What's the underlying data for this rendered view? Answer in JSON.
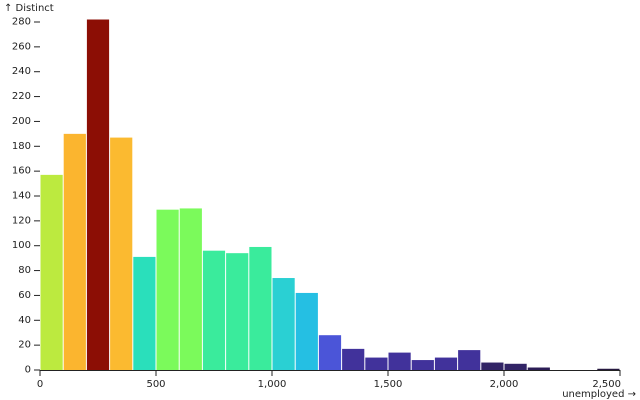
{
  "chart_data": {
    "type": "bar",
    "xlabel": "unemployed →",
    "ylabel": "↑ Distinct",
    "xlim": [
      0,
      2500
    ],
    "ylim": [
      0,
      280
    ],
    "x_ticks": [
      0,
      500,
      1000,
      1500,
      2000,
      2500
    ],
    "x_tick_labels": [
      "0",
      "500",
      "1,000",
      "1,500",
      "2,000",
      "2,500"
    ],
    "y_ticks": [
      0,
      20,
      40,
      60,
      80,
      100,
      120,
      140,
      160,
      180,
      200,
      220,
      240,
      260,
      280
    ],
    "y_tick_labels": [
      "0",
      "20",
      "40",
      "60",
      "80",
      "100",
      "120",
      "140",
      "160",
      "180",
      "200",
      "220",
      "240",
      "260",
      "280"
    ],
    "grid": false,
    "legend": "none",
    "bins": [
      {
        "x0": 0,
        "x1": 100,
        "value": 157,
        "color": "#bcea3f"
      },
      {
        "x0": 100,
        "x1": 200,
        "value": 190,
        "color": "#fbb52f"
      },
      {
        "x0": 200,
        "x1": 300,
        "value": 282,
        "color": "#8c0e05"
      },
      {
        "x0": 300,
        "x1": 400,
        "value": 187,
        "color": "#fbba30"
      },
      {
        "x0": 400,
        "x1": 500,
        "value": 91,
        "color": "#2adfbb"
      },
      {
        "x0": 500,
        "x1": 600,
        "value": 129,
        "color": "#7bfa5b"
      },
      {
        "x0": 600,
        "x1": 700,
        "value": 130,
        "color": "#7bfa5b"
      },
      {
        "x0": 700,
        "x1": 800,
        "value": 96,
        "color": "#3aeb9c"
      },
      {
        "x0": 800,
        "x1": 900,
        "value": 94,
        "color": "#3aeb9c"
      },
      {
        "x0": 900,
        "x1": 1000,
        "value": 99,
        "color": "#3aeb9c"
      },
      {
        "x0": 1000,
        "x1": 1100,
        "value": 74,
        "color": "#2ad0d3"
      },
      {
        "x0": 1100,
        "x1": 1200,
        "value": 62,
        "color": "#25bfe3"
      },
      {
        "x0": 1200,
        "x1": 1300,
        "value": 28,
        "color": "#4b55d8"
      },
      {
        "x0": 1300,
        "x1": 1400,
        "value": 17,
        "color": "#41329b"
      },
      {
        "x0": 1400,
        "x1": 1500,
        "value": 10,
        "color": "#41329b"
      },
      {
        "x0": 1500,
        "x1": 1600,
        "value": 14,
        "color": "#41329b"
      },
      {
        "x0": 1600,
        "x1": 1700,
        "value": 8,
        "color": "#41329b"
      },
      {
        "x0": 1700,
        "x1": 1800,
        "value": 10,
        "color": "#41329b"
      },
      {
        "x0": 1800,
        "x1": 1900,
        "value": 16,
        "color": "#41329b"
      },
      {
        "x0": 1900,
        "x1": 2000,
        "value": 6,
        "color": "#322466"
      },
      {
        "x0": 2000,
        "x1": 2100,
        "value": 5,
        "color": "#322466"
      },
      {
        "x0": 2100,
        "x1": 2200,
        "value": 2,
        "color": "#2c1d56"
      },
      {
        "x0": 2200,
        "x1": 2300,
        "value": 0,
        "color": "#2c1d56"
      },
      {
        "x0": 2300,
        "x1": 2400,
        "value": 0,
        "color": "#2c1d56"
      },
      {
        "x0": 2400,
        "x1": 2500,
        "value": 1,
        "color": "#26183f"
      }
    ]
  }
}
